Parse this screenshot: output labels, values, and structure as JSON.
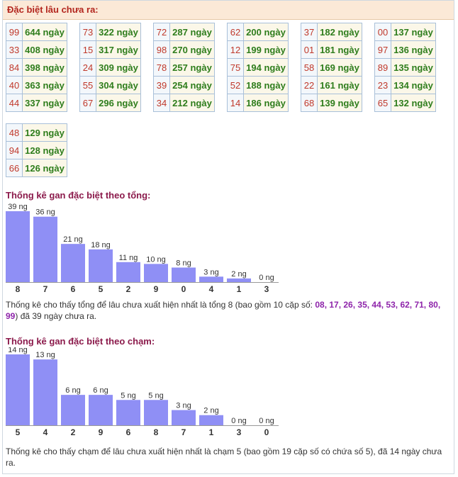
{
  "header": {
    "title": "Đặc biệt lâu chưa ra:"
  },
  "gan_groups": [
    [
      {
        "num": "99",
        "days": "644 ngày"
      },
      {
        "num": "33",
        "days": "408 ngày"
      },
      {
        "num": "84",
        "days": "398 ngày"
      },
      {
        "num": "40",
        "days": "363 ngày"
      },
      {
        "num": "44",
        "days": "337 ngày"
      }
    ],
    [
      {
        "num": "73",
        "days": "322 ngày"
      },
      {
        "num": "15",
        "days": "317 ngày"
      },
      {
        "num": "24",
        "days": "309 ngày"
      },
      {
        "num": "55",
        "days": "304 ngày"
      },
      {
        "num": "67",
        "days": "296 ngày"
      }
    ],
    [
      {
        "num": "72",
        "days": "287 ngày"
      },
      {
        "num": "98",
        "days": "270 ngày"
      },
      {
        "num": "78",
        "days": "257 ngày"
      },
      {
        "num": "39",
        "days": "254 ngày"
      },
      {
        "num": "34",
        "days": "212 ngày"
      }
    ],
    [
      {
        "num": "62",
        "days": "200 ngày"
      },
      {
        "num": "12",
        "days": "199 ngày"
      },
      {
        "num": "75",
        "days": "194 ngày"
      },
      {
        "num": "52",
        "days": "188 ngày"
      },
      {
        "num": "14",
        "days": "186 ngày"
      }
    ],
    [
      {
        "num": "37",
        "days": "182 ngày"
      },
      {
        "num": "01",
        "days": "181 ngày"
      },
      {
        "num": "58",
        "days": "169 ngày"
      },
      {
        "num": "22",
        "days": "161 ngày"
      },
      {
        "num": "68",
        "days": "139 ngày"
      }
    ],
    [
      {
        "num": "00",
        "days": "137 ngày"
      },
      {
        "num": "97",
        "days": "136 ngày"
      },
      {
        "num": "89",
        "days": "135 ngày"
      },
      {
        "num": "23",
        "days": "134 ngày"
      },
      {
        "num": "65",
        "days": "132 ngày"
      }
    ],
    [
      {
        "num": "48",
        "days": "129 ngày"
      },
      {
        "num": "94",
        "days": "128 ngày"
      },
      {
        "num": "66",
        "days": "126 ngày"
      }
    ]
  ],
  "sum_section": {
    "title": "Thống kê gan đặc biệt theo tổng:",
    "note_prefix": "Thống kê cho thấy tổng để lâu chưa xuất hiện nhất là tổng 8 (bao gồm 10 cặp số:",
    "note_numbers": "08, 17, 26, 35, 44, 53, 62, 71, 80, 99",
    "note_suffix": ") đã 39 ngày chưa ra."
  },
  "touch_section": {
    "title": "Thống kê gan đặc biệt theo chạm:",
    "note": "Thống kê cho thấy chạm để lâu chưa xuất hiện nhất là chạm 5 (bao gồm 19 cặp số có chứa số 5), đã 14 ngày chưa ra."
  },
  "chart_data": [
    {
      "type": "bar",
      "title": "Thống kê gan đặc biệt theo tổng:",
      "categories": [
        "8",
        "7",
        "6",
        "5",
        "2",
        "9",
        "0",
        "4",
        "1",
        "3"
      ],
      "values": [
        39,
        36,
        21,
        18,
        11,
        10,
        8,
        3,
        2,
        0
      ],
      "value_suffix": " ng",
      "bar_color": "#8f8ff5"
    },
    {
      "type": "bar",
      "title": "Thống kê gan đặc biệt theo chạm:",
      "categories": [
        "5",
        "4",
        "2",
        "9",
        "6",
        "8",
        "7",
        "1",
        "3",
        "0"
      ],
      "values": [
        14,
        13,
        6,
        6,
        5,
        5,
        3,
        2,
        0,
        0
      ],
      "value_suffix": " ng",
      "bar_color": "#8f8ff5"
    }
  ]
}
